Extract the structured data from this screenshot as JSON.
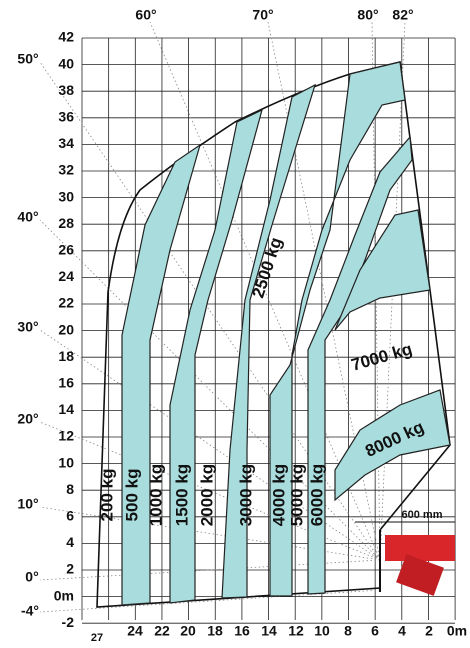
{
  "top_angles": [
    "60°",
    "70°",
    "80°",
    "82°"
  ],
  "left_angles": [
    "50°",
    "40°",
    "30°",
    "20°",
    "10°",
    "0°",
    "-4°"
  ],
  "y_axis_labels": [
    "42",
    "40",
    "38",
    "36",
    "34",
    "32",
    "30",
    "28",
    "26",
    "24",
    "22",
    "20",
    "18",
    "16",
    "14",
    "12",
    "10",
    "8",
    "6",
    "4",
    "2",
    "0m",
    "-2"
  ],
  "x_axis_labels": [
    "27",
    "24",
    "22",
    "20",
    "18",
    "16",
    "14",
    "12",
    "10",
    "8",
    "6",
    "4",
    "2",
    "0m"
  ],
  "load_labels": [
    "200 kg",
    "500 kg",
    "1000 kg",
    "1500 kg",
    "2000 kg",
    "3000 kg",
    "4000 kg",
    "5000 kg",
    "6000 kg",
    "2500 kg",
    "7000 kg",
    "8000 kg"
  ],
  "dimension": "600 mm"
}
